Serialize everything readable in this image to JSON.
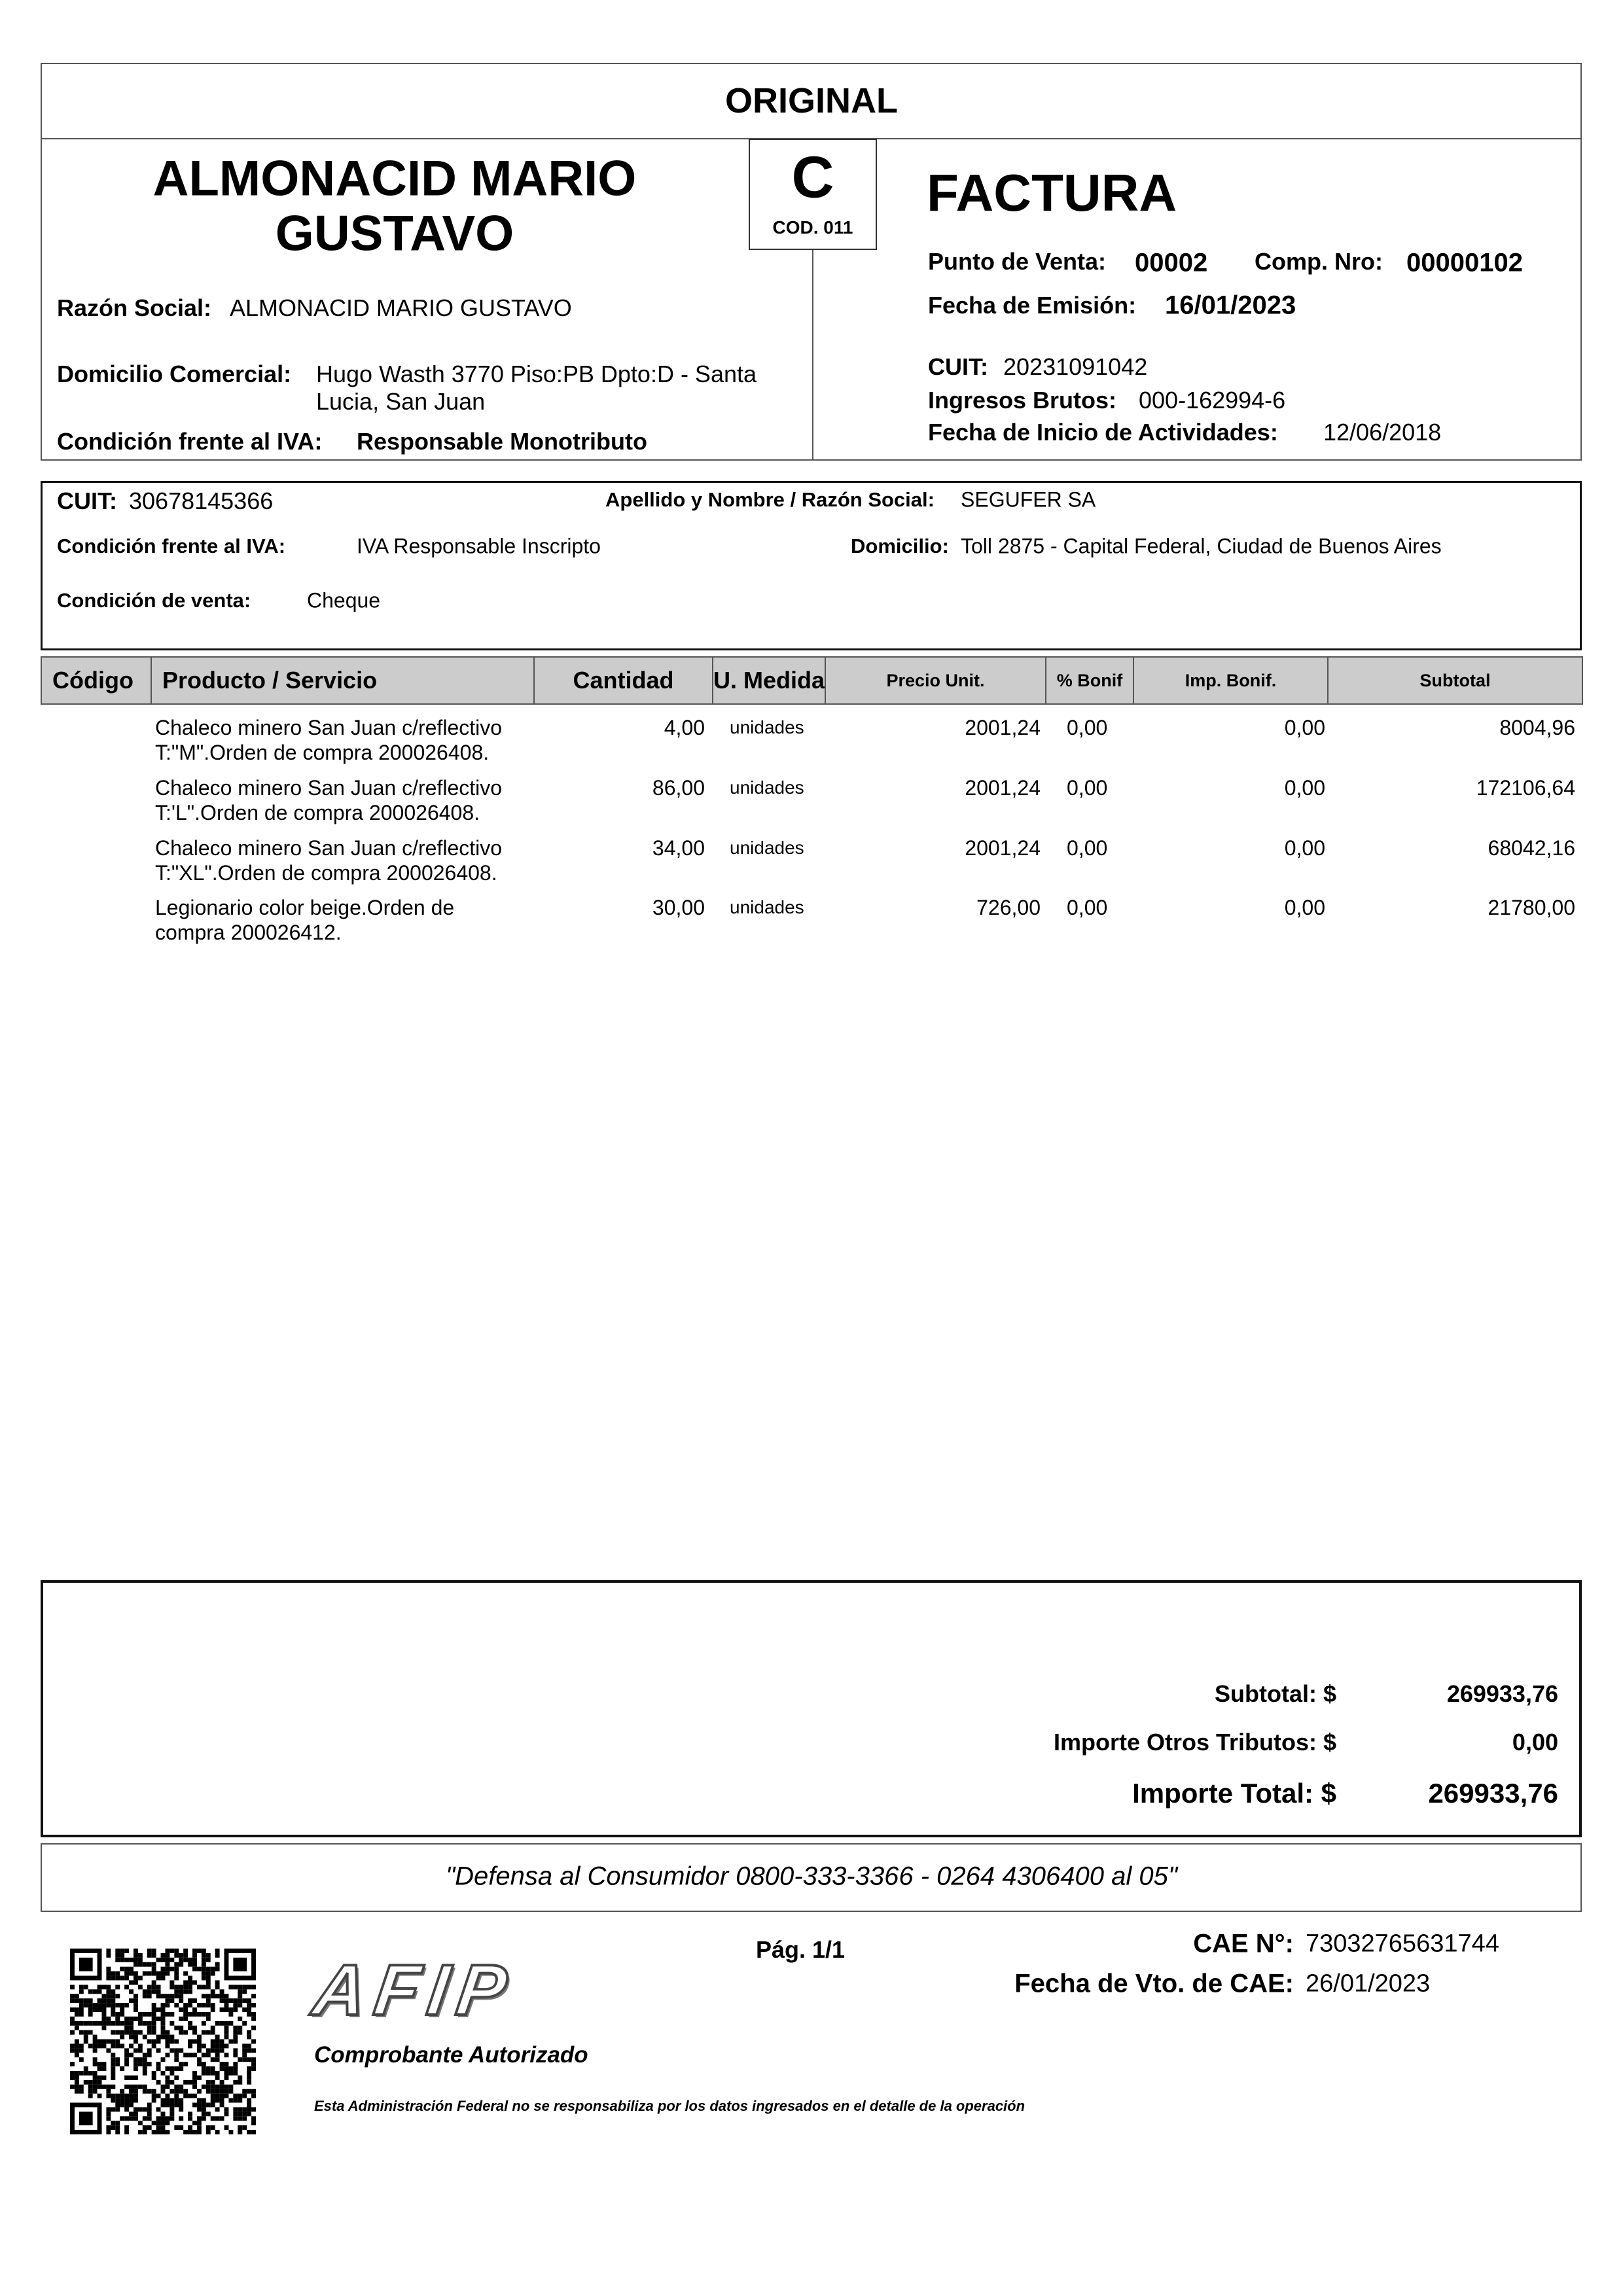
{
  "copy_label": "ORIGINAL",
  "issuer": {
    "name_line1": "ALMONACID MARIO",
    "name_line2": "GUSTAVO",
    "razon_social_label": "Razón Social:",
    "razon_social": "ALMONACID MARIO GUSTAVO",
    "domicilio_label": "Domicilio Comercial:",
    "domicilio_line1": "Hugo Wasth 3770 Piso:PB Dpto:D - Santa",
    "domicilio_line2": "Lucia, San Juan",
    "iva_label": "Condición frente al IVA:",
    "iva": "Responsable Monotributo"
  },
  "doc_type": {
    "letter": "C",
    "code": "COD. 011"
  },
  "invoice": {
    "title": "FACTURA",
    "punto_venta_label": "Punto de Venta:",
    "punto_venta": "00002",
    "comp_nro_label": "Comp. Nro:",
    "comp_nro": "00000102",
    "fecha_emision_label": "Fecha de Emisión:",
    "fecha_emision": "16/01/2023",
    "cuit_label": "CUIT:",
    "cuit": "20231091042",
    "iibb_label": "Ingresos Brutos:",
    "iibb": "000-162994-6",
    "inicio_label": "Fecha de Inicio de Actividades:",
    "inicio": "12/06/2018"
  },
  "client": {
    "cuit_label": "CUIT:",
    "cuit": "30678145366",
    "name_label": "Apellido y Nombre / Razón Social:",
    "name": "SEGUFER SA",
    "iva_label": "Condición frente al IVA:",
    "iva": "IVA Responsable Inscripto",
    "domicilio_label": "Domicilio:",
    "domicilio": "Toll 2875 - Capital Federal, Ciudad de Buenos Aires",
    "venta_label": "Condición de venta:",
    "venta": "Cheque"
  },
  "table": {
    "headers": [
      "Código",
      "Producto / Servicio",
      "Cantidad",
      "U. Medida",
      "Precio Unit.",
      "% Bonif",
      "Imp. Bonif.",
      "Subtotal"
    ],
    "rows": [
      {
        "codigo": "",
        "producto": [
          "Chaleco minero San Juan c/reflectivo",
          "T:\"M\".Orden de compra 200026408."
        ],
        "cantidad": "4,00",
        "unidad": "unidades",
        "precio": "2001,24",
        "bonif_pct": "0,00",
        "imp_bonif": "0,00",
        "subtotal": "8004,96"
      },
      {
        "codigo": "",
        "producto": [
          "Chaleco minero San Juan c/reflectivo",
          "T:'L\".Orden de compra 200026408."
        ],
        "cantidad": "86,00",
        "unidad": "unidades",
        "precio": "2001,24",
        "bonif_pct": "0,00",
        "imp_bonif": "0,00",
        "subtotal": "172106,64"
      },
      {
        "codigo": "",
        "producto": [
          "Chaleco minero San Juan c/reflectivo",
          "T:\"XL\".Orden de compra 200026408."
        ],
        "cantidad": "34,00",
        "unidad": "unidades",
        "precio": "2001,24",
        "bonif_pct": "0,00",
        "imp_bonif": "0,00",
        "subtotal": "68042,16"
      },
      {
        "codigo": "",
        "producto": [
          "Legionario color beige.Orden de",
          "compra 200026412."
        ],
        "cantidad": "30,00",
        "unidad": "unidades",
        "precio": "726,00",
        "bonif_pct": "0,00",
        "imp_bonif": "0,00",
        "subtotal": "21780,00"
      }
    ]
  },
  "totals": {
    "subtotal_label": "Subtotal: $",
    "subtotal": "269933,76",
    "otros_label": "Importe Otros Tributos: $",
    "otros": "0,00",
    "total_label": "Importe Total: $",
    "total": "269933,76"
  },
  "defensa": "\"Defensa al Consumidor 0800-333-3366 - 0264 4306400 al 05\"",
  "footer": {
    "page": "Pág. 1/1",
    "cae_label": "CAE N°:",
    "cae": "73032765631744",
    "cae_vto_label": "Fecha de Vto. de CAE:",
    "cae_vto": "26/01/2023",
    "logo_text": "AFIP",
    "authorized": "Comprobante Autorizado",
    "disclaimer": "Esta Administración Federal no se responsabiliza por los datos ingresados en el detalle de la operación"
  }
}
